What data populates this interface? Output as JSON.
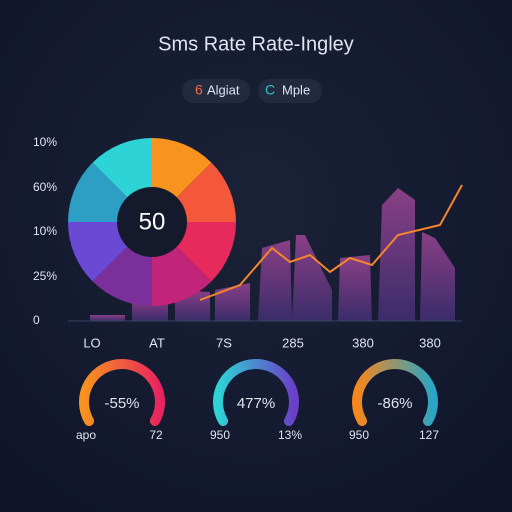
{
  "header": {
    "title": "Sms Rate Rate-Ingley"
  },
  "legend": [
    {
      "icon": "6",
      "label": "Algiat"
    },
    {
      "icon": "C",
      "label": "Mple"
    }
  ],
  "y_axis": [
    "10%",
    "60%",
    "10%",
    "25%",
    "0"
  ],
  "pie": {
    "center_label": "50"
  },
  "x_axis": [
    "LO",
    "AT",
    "7S",
    "285",
    "380",
    "380"
  ],
  "gauges": [
    {
      "label": "-55%",
      "left": "apo",
      "right": "72"
    },
    {
      "label": "477%",
      "left": "950",
      "right": "13%"
    },
    {
      "label": "-86%",
      "left": "950",
      "right": "127"
    }
  ]
}
